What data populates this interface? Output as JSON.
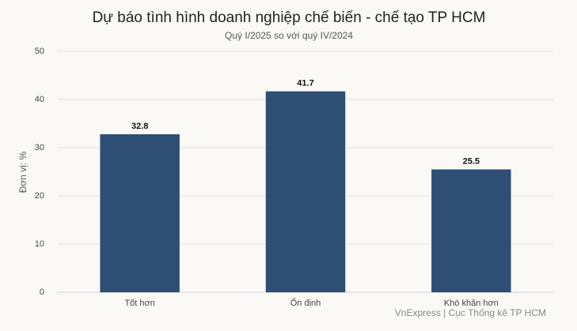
{
  "chart_data": {
    "type": "bar",
    "title": "Dự báo tình hình doanh nghiệp chế biến - chế tạo TP HCM",
    "subtitle": "Quý I/2025 so với quý IV/2024",
    "y_axis_label": "Đơn vị: %",
    "source": "VnExpress | Cục Thống kê TP HCM",
    "categories": [
      "Tốt hơn",
      "Ổn định",
      "Khó khăn hơn"
    ],
    "values": [
      32.8,
      41.7,
      25.5
    ],
    "color": "#2e4f73",
    "ylim": [
      0,
      50
    ],
    "yticks": [
      0,
      10,
      20,
      30,
      40,
      50
    ],
    "grid": true
  }
}
